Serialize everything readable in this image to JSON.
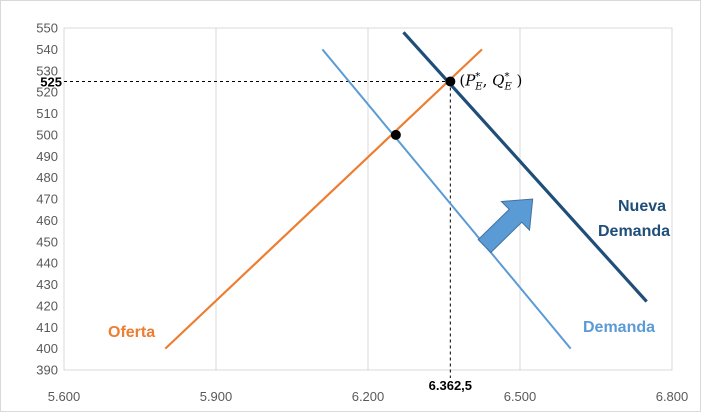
{
  "chart_data": {
    "type": "line",
    "title": "",
    "xlabel": "",
    "ylabel": "",
    "xlim": [
      5600,
      6800
    ],
    "ylim": [
      390,
      550
    ],
    "x_ticks": [
      5600,
      5900,
      6200,
      6500,
      6800
    ],
    "x_tick_labels": [
      "5.600",
      "5.900",
      "6.200",
      "6.500",
      "6.800"
    ],
    "y_ticks": [
      390,
      400,
      410,
      420,
      430,
      440,
      450,
      460,
      470,
      480,
      490,
      500,
      510,
      520,
      530,
      540,
      550
    ],
    "y_tick_labels": [
      "390",
      "400",
      "410",
      "420",
      "430",
      "440",
      "450",
      "460",
      "470",
      "480",
      "490",
      "500",
      "510",
      "520",
      "530",
      "540",
      "550"
    ],
    "grid": "vertical",
    "series": [
      {
        "name": "Oferta",
        "color": "#ed7d31",
        "points": [
          [
            5800,
            400
          ],
          [
            6425,
            540
          ]
        ]
      },
      {
        "name": "Demanda",
        "color": "#5b9bd5",
        "points": [
          [
            6110,
            540
          ],
          [
            6600,
            400
          ]
        ]
      },
      {
        "name": "Nueva Demanda",
        "color": "#1f4e79",
        "points": [
          [
            6270,
            548
          ],
          [
            6750,
            422
          ]
        ]
      }
    ],
    "series_labels": {
      "oferta": "Oferta",
      "demanda": "Demanda",
      "nueva_demanda_1": "Nueva",
      "nueva_demanda_2": "Demanda"
    },
    "points": [
      {
        "x": 6255,
        "y": 500
      },
      {
        "x": 6362.5,
        "y": 525
      }
    ],
    "guide_x": 6362.5,
    "guide_y": 525,
    "guide_x_label": "6.362,5",
    "guide_y_label": "525",
    "equilibrium_label": "(P*E, Q*E )",
    "arrow": {
      "from": [
        6430,
        448
      ],
      "to": [
        6525,
        470
      ],
      "color": "#5b9bd5"
    }
  }
}
